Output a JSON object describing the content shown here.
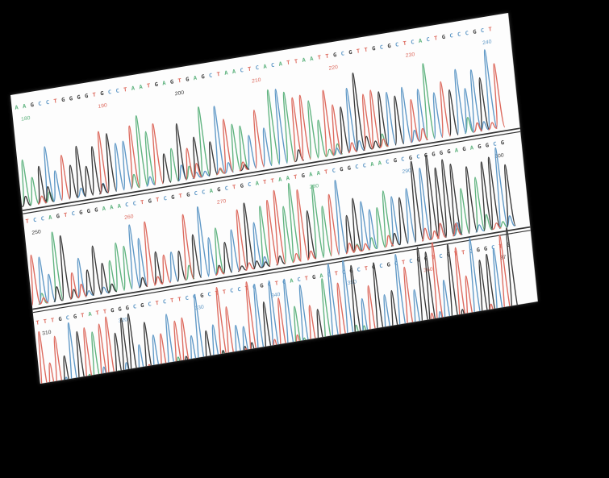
{
  "colors": {
    "A": "#5fb37f",
    "C": "#5f98c6",
    "G": "#3a3a3a",
    "T": "#dd6a5e",
    "background": "#000000",
    "paper": "#fdfdfd"
  },
  "rows": [
    {
      "sequence": "AAGCCTGGGGTGCCTAATGAGTGAGCTAACTCACATTAATTGCGTTGCGCTCACTGCCCGCT",
      "positions": [
        {
          "value": "180",
          "base": "A"
        },
        {
          "value": "190",
          "base": "T"
        },
        {
          "value": "200",
          "base": "G"
        },
        {
          "value": "210",
          "base": "T"
        },
        {
          "value": "220",
          "base": "T"
        },
        {
          "value": "230",
          "base": "T"
        },
        {
          "value": "240",
          "base": "C"
        }
      ]
    },
    {
      "sequence": "TCCAGTCGGGAAACCTGTCGTGCCAGCTGCATTAATGAATCGGCCAACGCGCGGGGAGAGGCG",
      "positions": [
        {
          "value": "250",
          "base": "G"
        },
        {
          "value": "260",
          "base": "T"
        },
        {
          "value": "270",
          "base": "T"
        },
        {
          "value": "280",
          "base": "A"
        },
        {
          "value": "290",
          "base": "C"
        },
        {
          "value": "300",
          "base": "G"
        }
      ]
    },
    {
      "sequence": "TTTGCGTATTGGGCGCTCTTCCGCTTCCTCGCTCACTGACTCGCTGCGCTCGGTCGTTCGGCTG",
      "positions": [
        {
          "value": "310",
          "base": "G"
        },
        {
          "value": "320",
          "base": "C"
        },
        {
          "value": "330",
          "base": "C"
        },
        {
          "value": "340",
          "base": "C"
        },
        {
          "value": "350",
          "base": "C"
        },
        {
          "value": "360",
          "base": "T"
        },
        {
          "value": "37",
          "base": "G"
        }
      ]
    }
  ]
}
